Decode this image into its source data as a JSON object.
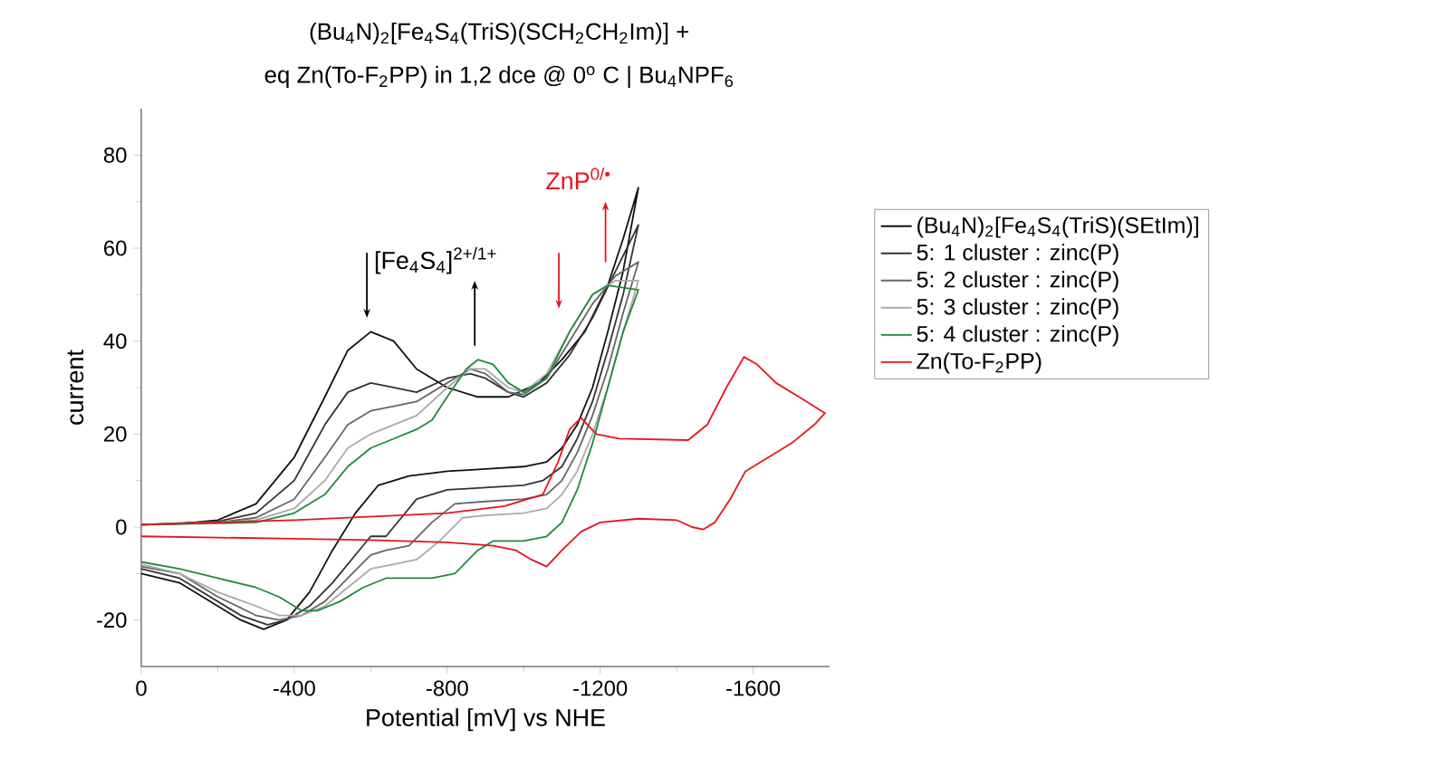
{
  "chart_data": {
    "type": "line",
    "title": "(Bu$_{4}$N)$_{2}$[Fe$_{4}$S$_{4}$(TriS)(SCH$_{2}$CH$_{2}$Im)] +",
    "subtitle": "eq Zn(To-F$_{2}$PP) in 1,2 dce @ 0$^{o}$ C | Bu$_{4}$NPF$_{6}$",
    "xlabel": "Potential [mV] vs NHE",
    "ylabel": "current",
    "xlim": [
      0,
      -1800
    ],
    "xticks": [
      0,
      -400,
      -800,
      -1200,
      -1600
    ],
    "ylim": [
      -30,
      90
    ],
    "yticks": [
      -20,
      0,
      20,
      40,
      60,
      80
    ],
    "grid": false,
    "legend": "right",
    "marker": "none",
    "line_style": "solid",
    "annotations": [
      "[Fe$_{4}$S$_{4}$]$^{2+/1+}$",
      "ZnP$^{0/•}$"
    ],
    "series": [
      {
        "name": "(Bu$_{4}$N)$_{2}$[Fe$_{4}$S$_{4}$(TriS)(SEtIm)]",
        "color": "#111111",
        "x": [
          0,
          -100,
          -200,
          -300,
          -400,
          -480,
          -540,
          -600,
          -660,
          -720,
          -800,
          -880,
          -960,
          -1040,
          -1100,
          -1160,
          -1220,
          -1260,
          -1300,
          -1260,
          -1220,
          -1180,
          -1140,
          -1100,
          -1060,
          -1000,
          -900,
          -800,
          -700,
          -620,
          -560,
          -500,
          -440,
          -380,
          -320,
          -260,
          -100,
          0
        ],
        "values": [
          0.5,
          0.7,
          1.5,
          5,
          15,
          28,
          38,
          42,
          40,
          34,
          30,
          28,
          28,
          31,
          36,
          42,
          52,
          62,
          73,
          55,
          42,
          30,
          22,
          17,
          14,
          13,
          12.5,
          12,
          11,
          9,
          3,
          -5,
          -14,
          -20,
          -22,
          -20,
          -12,
          -10
        ]
      },
      {
        "name": "5: 1 cluster : zinc(P)",
        "color": "#333333",
        "x": [
          0,
          -200,
          -300,
          -400,
          -480,
          -540,
          -600,
          -660,
          -720,
          -800,
          -860,
          -900,
          -960,
          -1000,
          -1060,
          -1120,
          -1180,
          -1240,
          -1300,
          -1260,
          -1220,
          -1180,
          -1140,
          -1100,
          -1050,
          -1000,
          -900,
          -800,
          -720,
          -680,
          -640,
          -600,
          -560,
          -500,
          -440,
          -380,
          -330,
          -260,
          -100,
          0
        ],
        "values": [
          0.5,
          1.2,
          3,
          10,
          22,
          29,
          31,
          30,
          29,
          32,
          33,
          32,
          29,
          28,
          31,
          37,
          45,
          55,
          65,
          50,
          38,
          27,
          19,
          13,
          10,
          9,
          8.5,
          8,
          6,
          2,
          -2,
          -2,
          -6,
          -12,
          -17,
          -20,
          -21,
          -19,
          -11,
          -9
        ]
      },
      {
        "name": "5: 2 cluster : zinc(P)",
        "color": "#666666",
        "x": [
          0,
          -200,
          -300,
          -400,
          -480,
          -540,
          -600,
          -660,
          -720,
          -800,
          -860,
          -900,
          -960,
          -1000,
          -1060,
          -1120,
          -1180,
          -1240,
          -1300,
          -1260,
          -1220,
          -1180,
          -1140,
          -1100,
          -1060,
          -1000,
          -900,
          -820,
          -760,
          -700,
          -640,
          -600,
          -540,
          -480,
          -420,
          -360,
          -300,
          -200,
          -100,
          0
        ],
        "values": [
          0.5,
          1,
          2,
          6,
          15,
          22,
          25,
          26,
          27,
          31,
          34,
          33,
          29,
          28.5,
          32,
          40,
          48,
          54,
          57,
          46,
          34,
          24,
          16,
          10,
          7,
          6,
          5.5,
          5,
          1,
          -4,
          -5,
          -6,
          -11,
          -16,
          -19,
          -20,
          -19,
          -15,
          -10,
          -8.5
        ]
      },
      {
        "name": "5: 3 cluster : zinc(P)",
        "color": "#aaaaaa",
        "x": [
          0,
          -200,
          -300,
          -400,
          -480,
          -540,
          -600,
          -660,
          -720,
          -800,
          -860,
          -900,
          -960,
          -1000,
          -1060,
          -1120,
          -1180,
          -1240,
          -1300,
          -1260,
          -1220,
          -1180,
          -1140,
          -1100,
          -1060,
          -1000,
          -900,
          -840,
          -780,
          -720,
          -660,
          -600,
          -540,
          -480,
          -420,
          -360,
          -300,
          -200,
          -100,
          0
        ],
        "values": [
          0.5,
          1,
          1.5,
          4,
          10,
          17,
          20,
          22,
          24,
          30,
          34,
          34,
          30,
          29,
          33,
          42,
          50,
          53,
          53,
          42,
          30,
          20,
          12,
          7,
          4,
          3,
          2.5,
          2,
          -3,
          -7,
          -8,
          -9,
          -13,
          -17,
          -19,
          -19,
          -17,
          -14,
          -10,
          -8
        ]
      },
      {
        "name": "5: 4 cluster : zinc(P)",
        "color": "#1f8a3a",
        "x": [
          0,
          -200,
          -300,
          -400,
          -480,
          -540,
          -600,
          -660,
          -720,
          -760,
          -800,
          -850,
          -880,
          -920,
          -960,
          -1000,
          -1060,
          -1120,
          -1180,
          -1220,
          -1300,
          -1260,
          -1220,
          -1180,
          -1140,
          -1100,
          -1060,
          -1000,
          -920,
          -880,
          -820,
          -760,
          -700,
          -640,
          -580,
          -520,
          -460,
          -420,
          -360,
          -300,
          -200,
          -100,
          0
        ],
        "values": [
          0.5,
          0.8,
          1,
          3,
          7,
          13,
          17,
          19,
          21,
          23,
          28,
          34,
          36,
          35,
          31,
          29,
          32,
          42,
          50,
          52,
          51,
          42,
          30,
          18,
          8,
          1,
          -2,
          -3,
          -3,
          -5,
          -10,
          -11,
          -11,
          -11,
          -13,
          -16,
          -18,
          -18,
          -15,
          -13,
          -11,
          -9,
          -7.5
        ]
      },
      {
        "name": "Zn(To-F$_{2}$PP)",
        "color": "#e8141c",
        "x": [
          0,
          -400,
          -800,
          -950,
          -1050,
          -1090,
          -1120,
          -1150,
          -1190,
          -1250,
          -1430,
          -1480,
          -1530,
          -1576,
          -1610,
          -1660,
          -1720,
          -1788,
          -1760,
          -1700,
          -1640,
          -1580,
          -1540,
          -1500,
          -1470,
          -1440,
          -1400,
          -1300,
          -1200,
          -1150,
          -1100,
          -1060,
          -1020,
          -980,
          -920,
          -800,
          -600,
          -400,
          0
        ],
        "values": [
          0.5,
          1.5,
          3,
          4.5,
          7,
          14,
          21,
          23.5,
          20,
          19,
          18.7,
          22,
          30,
          36.6,
          35,
          31,
          28,
          24.5,
          22,
          18,
          15,
          12,
          6,
          1,
          -0.5,
          0,
          1.5,
          1.8,
          1,
          -1,
          -5,
          -8.5,
          -7,
          -5,
          -4,
          -3.3,
          -2.8,
          -2.5,
          -2
        ]
      }
    ]
  }
}
